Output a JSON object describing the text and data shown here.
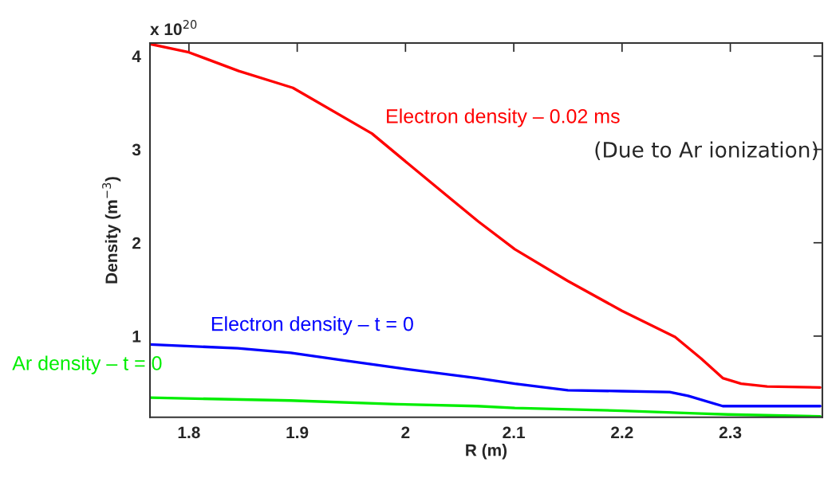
{
  "chart_data": {
    "type": "line",
    "xlabel": "R (m)",
    "ylabel": "Density (m$^{−3}$)",
    "xlim": [
      1.764,
      2.385
    ],
    "xticks": [
      1.8,
      1.9,
      2,
      2.1,
      2.2,
      2.3
    ],
    "ylim": [
      0.13,
      4.14
    ],
    "yticks": [
      1,
      2,
      3,
      4
    ],
    "grid": false,
    "legend": false,
    "line_style": "solid",
    "annotations": [
      "x 10$^{20}$",
      "(Due to Ar ionization)"
    ],
    "series": [
      {
        "name": "Electron density – 0.02 ms",
        "color": "#ff0000",
        "x": [
          1.764,
          1.8,
          1.846,
          1.896,
          1.969,
          2.023,
          2.067,
          2.101,
          2.15,
          2.2,
          2.249,
          2.273,
          2.293,
          2.31,
          2.334,
          2.383
        ],
        "values": [
          4.13,
          4.04,
          3.84,
          3.66,
          3.17,
          2.65,
          2.23,
          1.93,
          1.59,
          1.27,
          0.99,
          0.76,
          0.55,
          0.49,
          0.46,
          0.45
        ]
      },
      {
        "name": "Electron density – t = 0",
        "color": "#0000ff",
        "x": [
          1.764,
          1.845,
          1.894,
          1.943,
          1.992,
          2.066,
          2.101,
          2.15,
          2.2,
          2.244,
          2.261,
          2.293,
          2.383
        ],
        "values": [
          0.91,
          0.87,
          0.82,
          0.74,
          0.66,
          0.55,
          0.49,
          0.42,
          0.41,
          0.4,
          0.36,
          0.25,
          0.25
        ]
      },
      {
        "name": "Ar density – t = 0",
        "color": "#00ee00",
        "x": [
          1.764,
          1.894,
          1.992,
          2.066,
          2.101,
          2.2,
          2.273,
          2.298,
          2.383
        ],
        "values": [
          0.34,
          0.31,
          0.27,
          0.25,
          0.23,
          0.2,
          0.17,
          0.16,
          0.14
        ]
      }
    ]
  }
}
